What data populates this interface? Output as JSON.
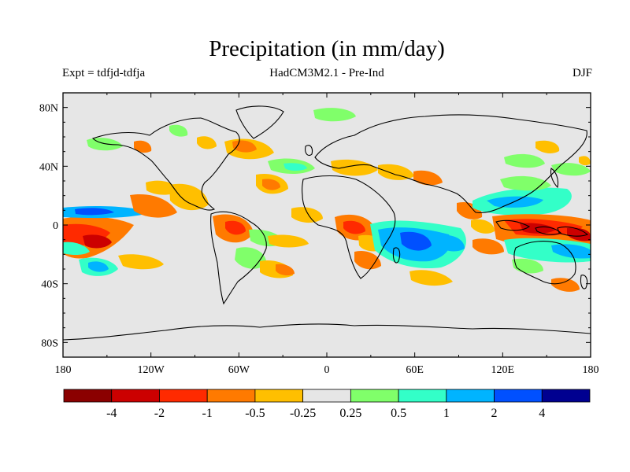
{
  "header": {
    "title": "Precipitation (in mm/day)",
    "experiment": "Expt = tdfjd-tdfja",
    "model": "HadCM3M2.1 - Pre-Ind",
    "season": "DJF"
  },
  "map": {
    "kind": "global precipitation difference map",
    "lon_labels": [
      "180",
      "120W",
      "60W",
      "0",
      "60E",
      "120E",
      "180"
    ],
    "lat_labels": [
      "80N",
      "40N",
      "0",
      "40S",
      "80S"
    ],
    "background_color": "#e6e6e6",
    "coastline_color": "#000000"
  },
  "colorbar": {
    "colors": [
      "#8b0000",
      "#cc0000",
      "#ff2a00",
      "#ff7a00",
      "#ffbf00",
      "#e6e6e6",
      "#80ff6a",
      "#33ffc8",
      "#00b4ff",
      "#0050ff",
      "#000090"
    ],
    "labels": [
      "-4",
      "-2",
      "-1",
      "-0.5",
      "-0.25",
      "0.25",
      "0.5",
      "1",
      "2",
      "4"
    ]
  }
}
